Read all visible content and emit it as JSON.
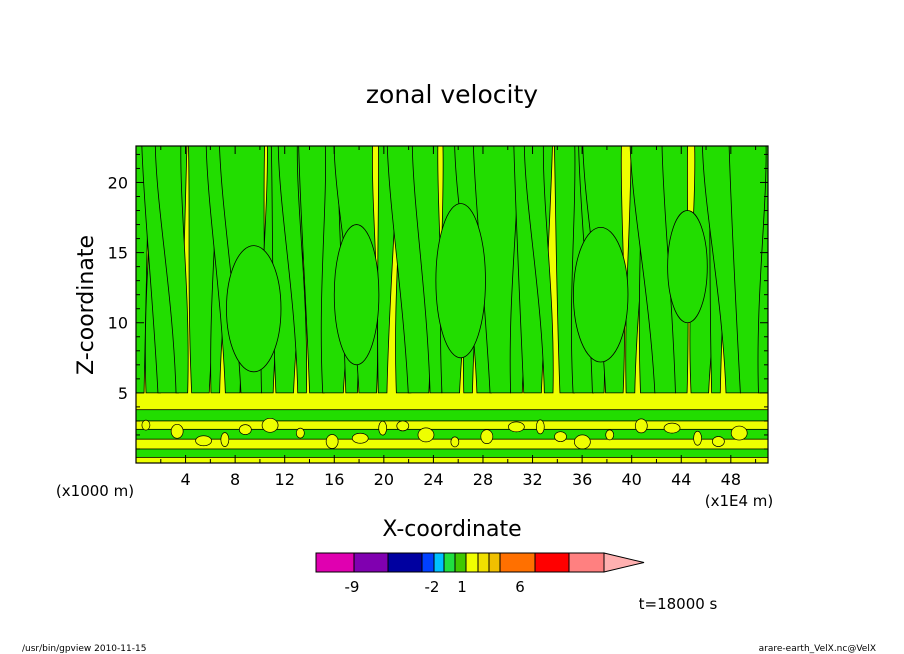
{
  "chart_data": {
    "type": "heatmap",
    "title": "zonal velocity",
    "xlabel": "X-coordinate",
    "ylabel": "Z-coordinate",
    "x_unit": "(x1E4 m)",
    "y_unit": "(x1000 m)",
    "xlim": [
      0,
      51
    ],
    "ylim": [
      0,
      22.6
    ],
    "x_ticks": [
      "4",
      "8",
      "12",
      "16",
      "20",
      "24",
      "28",
      "32",
      "36",
      "40",
      "44",
      "48"
    ],
    "y_ticks": [
      "5",
      "10",
      "15",
      "20"
    ],
    "colorbar": {
      "labels": [
        "-9",
        "-2",
        "1",
        "6"
      ],
      "colors": [
        "#e000b0",
        "#8000b0",
        "#0000a0",
        "#0040ff",
        "#00c0ff",
        "#20e040",
        "#40c800",
        "#f0ff00",
        "#f0e000",
        "#f0c000",
        "#ff7000",
        "#ff0000",
        "#ff8080",
        "#ffb0b0"
      ]
    },
    "field_colors": {
      "negative": "#22dd00",
      "positive": "#eeff00"
    },
    "time_label": "t=18000 s"
  },
  "footer": {
    "program": "/usr/bin/gpview  2010-11-15",
    "source": "arare-earth_VelX.nc@VelX"
  }
}
